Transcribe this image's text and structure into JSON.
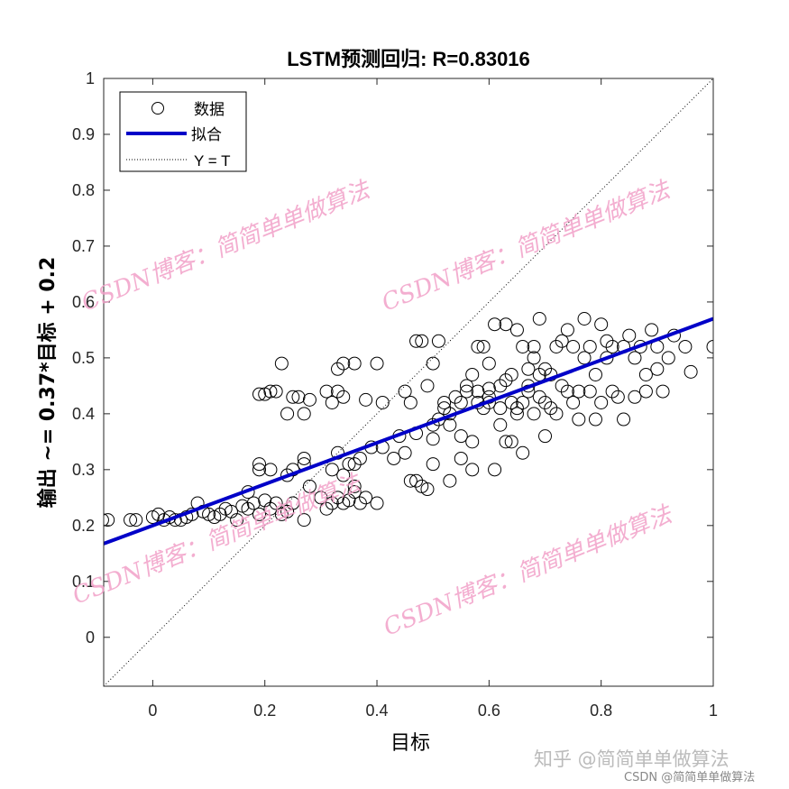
{
  "chart_data": {
    "type": "scatter",
    "title": "LSTM预测回归: R=0.83016",
    "xlabel": "目标",
    "ylabel": "输出 ~= 0.37*目标 + 0.2",
    "xlim": [
      -0.0875,
      1
    ],
    "ylim": [
      -0.0875,
      1
    ],
    "xticks": [
      0,
      0.2,
      0.4,
      0.6,
      0.8,
      1
    ],
    "xtick_labels": [
      "0",
      "0.2",
      "0.4",
      "0.6",
      "0.8",
      "1"
    ],
    "yticks": [
      0,
      0.1,
      0.2,
      0.3,
      0.4,
      0.5,
      0.6,
      0.7,
      0.8,
      0.9,
      1
    ],
    "ytick_labels": [
      "0",
      "0.1",
      "0.2",
      "0.3",
      "0.4",
      "0.5",
      "0.6",
      "0.7",
      "0.8",
      "0.9",
      "1"
    ],
    "grid": false,
    "legend": {
      "placement": "top-left",
      "entries": [
        "数据",
        "拟合",
        "Y = T"
      ]
    },
    "fit": {
      "slope": 0.37,
      "intercept": 0.2,
      "color": "#0000c8"
    },
    "identity_line": {
      "color": "#000000",
      "style": "dotted"
    },
    "marker_color": "#000000",
    "points": [
      [
        -0.09,
        0.21
      ],
      [
        -0.08,
        0.21
      ],
      [
        -0.04,
        0.21
      ],
      [
        -0.03,
        0.21
      ],
      [
        0.0,
        0.215
      ],
      [
        0.01,
        0.22
      ],
      [
        0.02,
        0.21
      ],
      [
        0.03,
        0.215
      ],
      [
        0.04,
        0.21
      ],
      [
        0.05,
        0.21
      ],
      [
        0.06,
        0.215
      ],
      [
        0.07,
        0.22
      ],
      [
        0.08,
        0.24
      ],
      [
        0.09,
        0.225
      ],
      [
        0.1,
        0.22
      ],
      [
        0.11,
        0.215
      ],
      [
        0.12,
        0.22
      ],
      [
        0.13,
        0.23
      ],
      [
        0.14,
        0.225
      ],
      [
        0.15,
        0.21
      ],
      [
        0.16,
        0.235
      ],
      [
        0.17,
        0.23
      ],
      [
        0.18,
        0.24
      ],
      [
        0.19,
        0.22
      ],
      [
        0.2,
        0.245
      ],
      [
        0.21,
        0.23
      ],
      [
        0.22,
        0.24
      ],
      [
        0.23,
        0.22
      ],
      [
        0.24,
        0.225
      ],
      [
        0.25,
        0.24
      ],
      [
        0.27,
        0.21
      ],
      [
        0.17,
        0.26
      ],
      [
        0.19,
        0.31
      ],
      [
        0.19,
        0.3
      ],
      [
        0.21,
        0.3
      ],
      [
        0.25,
        0.3
      ],
      [
        0.27,
        0.32
      ],
      [
        0.27,
        0.31
      ],
      [
        0.28,
        0.27
      ],
      [
        0.24,
        0.29
      ],
      [
        0.19,
        0.435
      ],
      [
        0.2,
        0.435
      ],
      [
        0.21,
        0.44
      ],
      [
        0.22,
        0.44
      ],
      [
        0.23,
        0.49
      ],
      [
        0.24,
        0.4
      ],
      [
        0.25,
        0.43
      ],
      [
        0.26,
        0.43
      ],
      [
        0.27,
        0.4
      ],
      [
        0.28,
        0.425
      ],
      [
        0.31,
        0.44
      ],
      [
        0.33,
        0.44
      ],
      [
        0.34,
        0.43
      ],
      [
        0.32,
        0.42
      ],
      [
        0.33,
        0.48
      ],
      [
        0.34,
        0.49
      ],
      [
        0.36,
        0.49
      ],
      [
        0.4,
        0.49
      ],
      [
        0.38,
        0.425
      ],
      [
        0.41,
        0.42
      ],
      [
        0.3,
        0.25
      ],
      [
        0.31,
        0.23
      ],
      [
        0.32,
        0.24
      ],
      [
        0.33,
        0.25
      ],
      [
        0.34,
        0.24
      ],
      [
        0.35,
        0.245
      ],
      [
        0.36,
        0.26
      ],
      [
        0.37,
        0.24
      ],
      [
        0.38,
        0.25
      ],
      [
        0.33,
        0.33
      ],
      [
        0.34,
        0.29
      ],
      [
        0.35,
        0.31
      ],
      [
        0.36,
        0.31
      ],
      [
        0.37,
        0.32
      ],
      [
        0.32,
        0.3
      ],
      [
        0.39,
        0.34
      ],
      [
        0.4,
        0.24
      ],
      [
        0.41,
        0.34
      ],
      [
        0.36,
        0.27
      ],
      [
        0.43,
        0.32
      ],
      [
        0.44,
        0.36
      ],
      [
        0.45,
        0.33
      ],
      [
        0.46,
        0.28
      ],
      [
        0.47,
        0.28
      ],
      [
        0.48,
        0.27
      ],
      [
        0.49,
        0.265
      ],
      [
        0.5,
        0.31
      ],
      [
        0.5,
        0.355
      ],
      [
        0.47,
        0.365
      ],
      [
        0.45,
        0.44
      ],
      [
        0.46,
        0.42
      ],
      [
        0.47,
        0.53
      ],
      [
        0.48,
        0.53
      ],
      [
        0.49,
        0.45
      ],
      [
        0.5,
        0.49
      ],
      [
        0.51,
        0.53
      ],
      [
        0.5,
        0.38
      ],
      [
        0.51,
        0.39
      ],
      [
        0.52,
        0.41
      ],
      [
        0.52,
        0.42
      ],
      [
        0.53,
        0.38
      ],
      [
        0.53,
        0.28
      ],
      [
        0.54,
        0.43
      ],
      [
        0.55,
        0.42
      ],
      [
        0.55,
        0.36
      ],
      [
        0.56,
        0.44
      ],
      [
        0.56,
        0.45
      ],
      [
        0.57,
        0.47
      ],
      [
        0.57,
        0.3
      ],
      [
        0.57,
        0.35
      ],
      [
        0.58,
        0.52
      ],
      [
        0.58,
        0.42
      ],
      [
        0.59,
        0.41
      ],
      [
        0.59,
        0.52
      ],
      [
        0.6,
        0.43
      ],
      [
        0.6,
        0.445
      ],
      [
        0.61,
        0.3
      ],
      [
        0.61,
        0.56
      ],
      [
        0.62,
        0.45
      ],
      [
        0.62,
        0.41
      ],
      [
        0.63,
        0.56
      ],
      [
        0.63,
        0.46
      ],
      [
        0.63,
        0.35
      ],
      [
        0.64,
        0.47
      ],
      [
        0.64,
        0.42
      ],
      [
        0.65,
        0.55
      ],
      [
        0.65,
        0.41
      ],
      [
        0.66,
        0.33
      ],
      [
        0.66,
        0.42
      ],
      [
        0.66,
        0.52
      ],
      [
        0.67,
        0.45
      ],
      [
        0.67,
        0.44
      ],
      [
        0.68,
        0.5
      ],
      [
        0.68,
        0.52
      ],
      [
        0.68,
        0.4
      ],
      [
        0.69,
        0.57
      ],
      [
        0.69,
        0.43
      ],
      [
        0.7,
        0.48
      ],
      [
        0.7,
        0.36
      ],
      [
        0.71,
        0.47
      ],
      [
        0.71,
        0.41
      ],
      [
        0.72,
        0.52
      ],
      [
        0.72,
        0.4
      ],
      [
        0.73,
        0.53
      ],
      [
        0.73,
        0.45
      ],
      [
        0.74,
        0.55
      ],
      [
        0.75,
        0.42
      ],
      [
        0.75,
        0.52
      ],
      [
        0.76,
        0.44
      ],
      [
        0.77,
        0.57
      ],
      [
        0.77,
        0.5
      ],
      [
        0.78,
        0.52
      ],
      [
        0.78,
        0.44
      ],
      [
        0.79,
        0.47
      ],
      [
        0.79,
        0.39
      ],
      [
        0.8,
        0.42
      ],
      [
        0.8,
        0.56
      ],
      [
        0.81,
        0.53
      ],
      [
        0.81,
        0.5
      ],
      [
        0.82,
        0.52
      ],
      [
        0.82,
        0.44
      ],
      [
        0.83,
        0.43
      ],
      [
        0.84,
        0.52
      ],
      [
        0.84,
        0.39
      ],
      [
        0.85,
        0.54
      ],
      [
        0.86,
        0.5
      ],
      [
        0.86,
        0.43
      ],
      [
        0.87,
        0.52
      ],
      [
        0.88,
        0.47
      ],
      [
        0.88,
        0.44
      ],
      [
        0.89,
        0.55
      ],
      [
        0.9,
        0.52
      ],
      [
        0.9,
        0.48
      ],
      [
        0.91,
        0.44
      ],
      [
        0.92,
        0.5
      ],
      [
        0.93,
        0.54
      ],
      [
        0.95,
        0.52
      ],
      [
        0.96,
        0.475
      ],
      [
        1.0,
        0.52
      ],
      [
        0.55,
        0.32
      ],
      [
        0.62,
        0.38
      ],
      [
        0.65,
        0.4
      ],
      [
        0.6,
        0.42
      ],
      [
        0.58,
        0.44
      ],
      [
        0.53,
        0.4
      ],
      [
        0.7,
        0.42
      ],
      [
        0.74,
        0.44
      ],
      [
        0.76,
        0.39
      ],
      [
        0.64,
        0.35
      ],
      [
        0.6,
        0.49
      ],
      [
        0.67,
        0.48
      ],
      [
        0.69,
        0.47
      ]
    ]
  },
  "watermarks": {
    "overlay_text": "CSDN博客：简简单单做算法",
    "zhihu": "知乎 @简简单单做算法",
    "csdn": "CSDN @简简单单做算法"
  }
}
